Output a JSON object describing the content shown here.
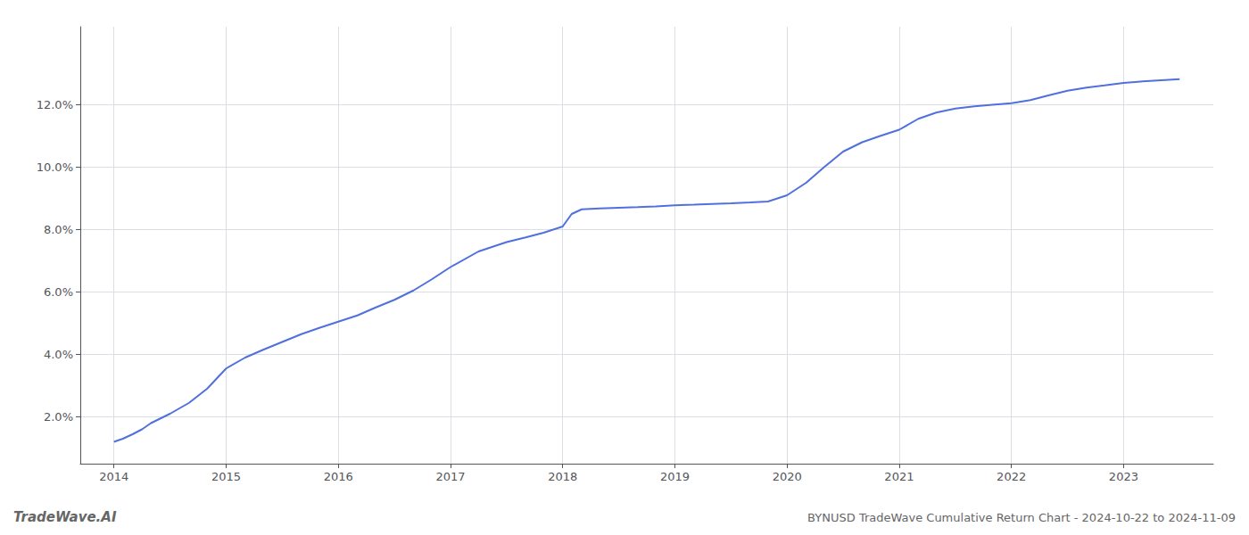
{
  "chart_data": {
    "type": "line",
    "title": "BYNUSD TradeWave Cumulative Return Chart - 2024-10-22 to 2024-11-09",
    "annotations": [
      "TradeWave.AI"
    ],
    "x": [
      2014.0,
      2014.08,
      2014.17,
      2014.25,
      2014.33,
      2014.5,
      2014.67,
      2014.83,
      2015.0,
      2015.17,
      2015.33,
      2015.5,
      2015.67,
      2015.83,
      2016.0,
      2016.17,
      2016.33,
      2016.5,
      2016.67,
      2016.83,
      2017.0,
      2017.25,
      2017.5,
      2017.67,
      2017.83,
      2018.0,
      2018.08,
      2018.17,
      2018.33,
      2018.5,
      2018.67,
      2018.83,
      2019.0,
      2019.17,
      2019.33,
      2019.5,
      2019.67,
      2019.83,
      2020.0,
      2020.17,
      2020.33,
      2020.5,
      2020.67,
      2020.83,
      2021.0,
      2021.17,
      2021.33,
      2021.5,
      2021.67,
      2021.83,
      2022.0,
      2022.17,
      2022.33,
      2022.5,
      2022.67,
      2022.83,
      2023.0,
      2023.17,
      2023.5
    ],
    "values": [
      1.2,
      1.3,
      1.45,
      1.6,
      1.8,
      2.1,
      2.45,
      2.9,
      3.55,
      3.9,
      4.15,
      4.4,
      4.65,
      4.85,
      5.05,
      5.25,
      5.5,
      5.75,
      6.05,
      6.4,
      6.8,
      7.3,
      7.6,
      7.75,
      7.9,
      8.1,
      8.5,
      8.65,
      8.68,
      8.7,
      8.72,
      8.74,
      8.78,
      8.8,
      8.82,
      8.84,
      8.87,
      8.9,
      9.1,
      9.5,
      10.0,
      10.5,
      10.8,
      11.0,
      11.2,
      11.55,
      11.75,
      11.88,
      11.95,
      12.0,
      12.05,
      12.15,
      12.3,
      12.45,
      12.55,
      12.62,
      12.7,
      12.75,
      12.82
    ],
    "xlim": [
      2013.7,
      2023.8
    ],
    "ylim": [
      0.5,
      14.5
    ],
    "xticks": [
      2014,
      2015,
      2016,
      2017,
      2018,
      2019,
      2020,
      2021,
      2022,
      2023
    ],
    "yticks": [
      {
        "value": 2.0,
        "label": "2.0%"
      },
      {
        "value": 4.0,
        "label": "4.0%"
      },
      {
        "value": 6.0,
        "label": "6.0%"
      },
      {
        "value": 8.0,
        "label": "8.0%"
      },
      {
        "value": 10.0,
        "label": "10.0%"
      },
      {
        "value": 12.0,
        "label": "12.0%"
      }
    ],
    "grid": true
  }
}
